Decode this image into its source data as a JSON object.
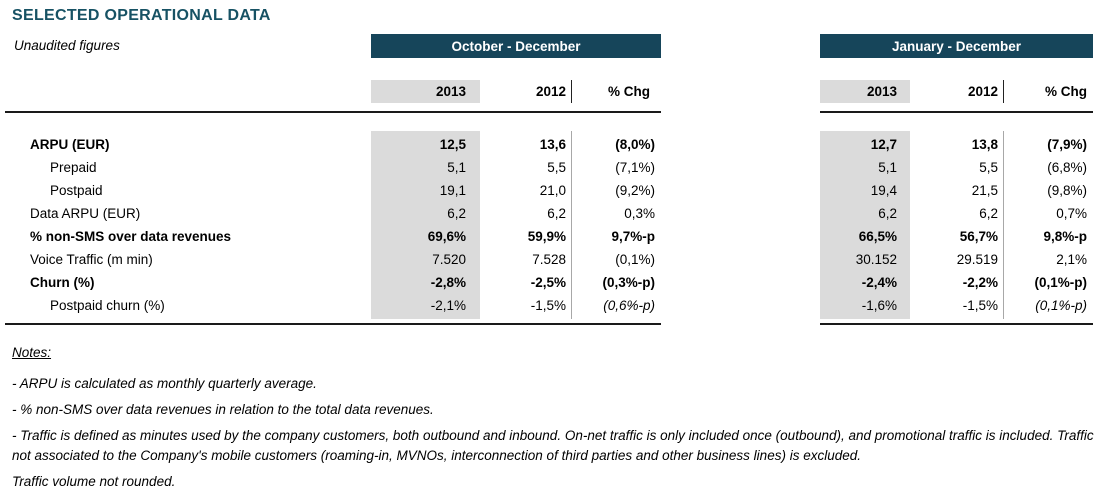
{
  "header": {
    "title": "SELECTED OPERATIONAL DATA",
    "subtitle": "Unaudited figures"
  },
  "table": {
    "sections": [
      {
        "period": "October - December"
      },
      {
        "period": "January - December"
      }
    ],
    "columns": [
      "2013",
      "2012",
      "% Chg"
    ],
    "rows": [
      {
        "label": "ARPU (EUR)",
        "oct_dec": [
          "12,5",
          "13,6",
          "(8,0%)"
        ],
        "jan_dec": [
          "12,7",
          "13,8",
          "(7,9%)"
        ]
      },
      {
        "label": "Prepaid",
        "oct_dec": [
          "5,1",
          "5,5",
          "(7,1%)"
        ],
        "jan_dec": [
          "5,1",
          "5,5",
          "(6,8%)"
        ]
      },
      {
        "label": "Postpaid",
        "oct_dec": [
          "19,1",
          "21,0",
          "(9,2%)"
        ],
        "jan_dec": [
          "19,4",
          "21,5",
          "(9,8%)"
        ]
      },
      {
        "label": "Data ARPU (EUR)",
        "oct_dec": [
          "6,2",
          "6,2",
          "0,3%"
        ],
        "jan_dec": [
          "6,2",
          "6,2",
          "0,7%"
        ]
      },
      {
        "label": "% non-SMS over data revenues",
        "oct_dec": [
          "69,6%",
          "59,9%",
          "9,7%-p"
        ],
        "jan_dec": [
          "66,5%",
          "56,7%",
          "9,8%-p"
        ]
      },
      {
        "label": "Voice Traffic (m min)",
        "oct_dec": [
          "7.520",
          "7.528",
          "(0,1%)"
        ],
        "jan_dec": [
          "30.152",
          "29.519",
          "2,1%"
        ]
      },
      {
        "label": "Churn (%)",
        "oct_dec": [
          "-2,8%",
          "-2,5%",
          "(0,3%-p)"
        ],
        "jan_dec": [
          "-2,4%",
          "-2,2%",
          "(0,1%-p)"
        ]
      },
      {
        "label": "Postpaid churn (%)",
        "oct_dec": [
          "-2,1%",
          "-1,5%",
          "(0,6%-p)"
        ],
        "jan_dec": [
          "-1,6%",
          "-1,5%",
          "(0,1%-p)"
        ]
      }
    ]
  },
  "notes": {
    "heading": "Notes:",
    "items": [
      "- ARPU is calculated as monthly quarterly average.",
      "- % non-SMS over data revenues in relation to the total data revenues.",
      "- Traffic is defined as minutes used by the company customers, both outbound and inbound. On-net traffic is only included once (outbound), and promotional traffic is included. Traffic not associated to the Company's mobile customers (roaming-in, MVNOs, interconnection of third parties and other business lines) is excluded.",
      "Traffic volume not rounded."
    ]
  },
  "colors": {
    "header_bar": "#16455A",
    "title_text": "#175264",
    "column_shade": "#DBDBDB"
  }
}
